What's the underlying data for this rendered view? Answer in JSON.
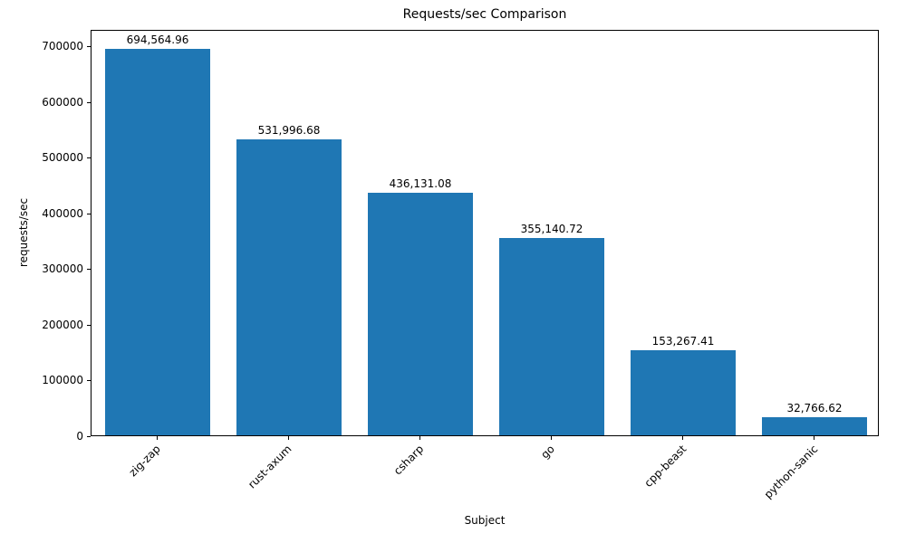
{
  "chart_data": {
    "type": "bar",
    "title": "Requests/sec Comparison",
    "xlabel": "Subject",
    "ylabel": "requests/sec",
    "categories": [
      "zig-zap",
      "rust-axum",
      "csharp",
      "go",
      "cpp-beast",
      "python-sanic"
    ],
    "values": [
      694564.96,
      531996.68,
      436131.08,
      355140.72,
      153267.41,
      32766.62
    ],
    "value_labels": [
      "694,564.96",
      "531,996.68",
      "436,131.08",
      "355,140.72",
      "153,267.41",
      "32,766.62"
    ],
    "ylim": [
      0,
      730000
    ],
    "yticks": [
      0,
      100000,
      200000,
      300000,
      400000,
      500000,
      600000,
      700000
    ],
    "ytick_labels": [
      "0",
      "100000",
      "200000",
      "300000",
      "400000",
      "500000",
      "600000",
      "700000"
    ],
    "bar_color": "#1f77b4",
    "grid": false,
    "legend": "none"
  }
}
